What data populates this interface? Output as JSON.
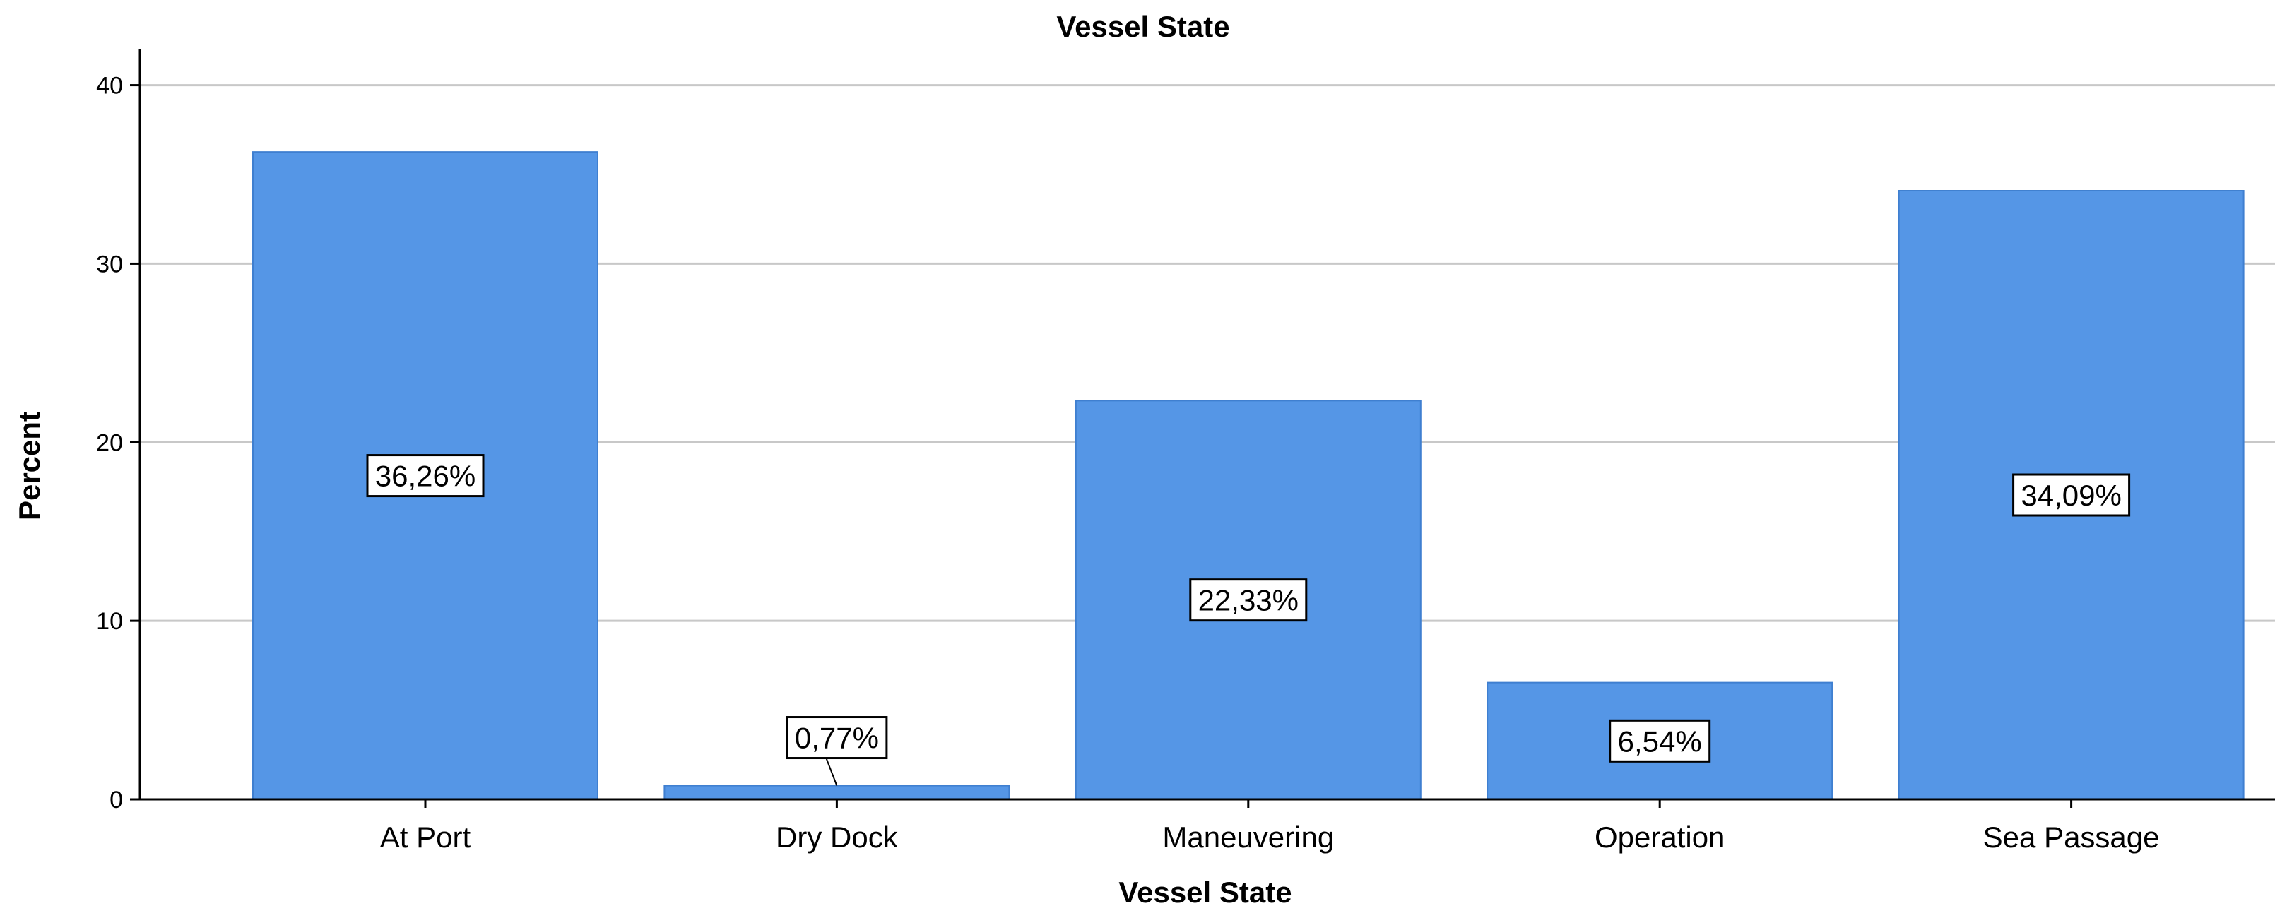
{
  "chart_data": {
    "type": "bar",
    "title": "Vessel State",
    "xlabel": "Vessel State",
    "ylabel": "Percent",
    "categories": [
      "At Port",
      "Dry Dock",
      "Maneuvering",
      "Operation",
      "Sea Passage"
    ],
    "values": [
      36.26,
      0.77,
      22.33,
      6.54,
      34.09
    ],
    "data_labels": [
      "36,26%",
      "0,77%",
      "22,33%",
      "6,54%",
      "34,09%"
    ],
    "ylim": [
      0,
      42
    ],
    "yticks": [
      0,
      10,
      20,
      30,
      40
    ],
    "ytick_labels": [
      "0",
      "10",
      "20",
      "30",
      "40"
    ],
    "grid": true,
    "legend": false,
    "colors": {
      "bar": "#5596e6",
      "bar_edge": "#3f7fd0",
      "grid": "#c8c8c8",
      "axis": "#000000",
      "label_box_fill": "#ffffff",
      "label_box_stroke": "#000000"
    }
  }
}
